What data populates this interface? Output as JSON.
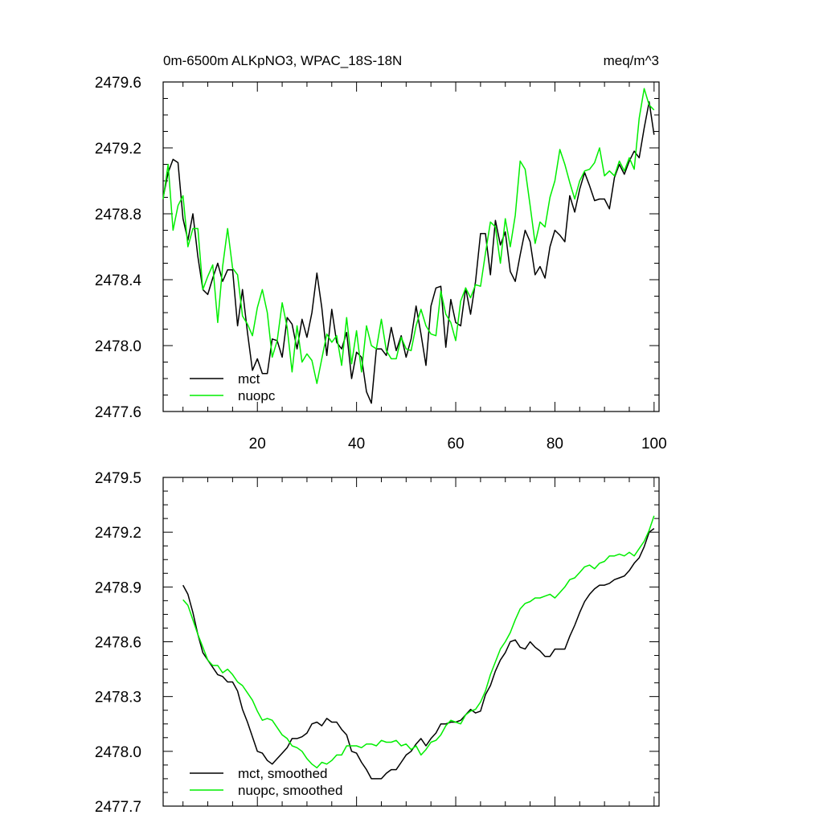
{
  "chart_data": [
    {
      "type": "line",
      "title": "0m-6500m ALKpNO3, WPAC_18S-18N",
      "units": "meq/m^3",
      "xlim": [
        1,
        101
      ],
      "ylim": [
        2477.6,
        2479.6
      ],
      "xticks": [
        20,
        40,
        60,
        80,
        100
      ],
      "yticks": [
        2477.6,
        2478.0,
        2478.4,
        2478.8,
        2479.2,
        2479.6
      ],
      "ytick_labels": [
        "2477.6",
        "2478.0",
        "2478.4",
        "2478.8",
        "2479.2",
        "2479.6"
      ],
      "legend": "bottom-left",
      "series": [
        {
          "name": "mct",
          "color": "#000000",
          "x_start": 1,
          "values": [
            2478.9,
            2479.05,
            2479.13,
            2479.11,
            2478.77,
            2478.64,
            2478.8,
            2478.54,
            2478.34,
            2478.31,
            2478.41,
            2478.5,
            2478.39,
            2478.46,
            2478.46,
            2478.12,
            2478.34,
            2478.08,
            2477.85,
            2477.92,
            2477.83,
            2477.83,
            2478.04,
            2478.03,
            2477.93,
            2478.17,
            2478.13,
            2477.98,
            2478.16,
            2478.05,
            2478.2,
            2478.44,
            2478.23,
            2477.94,
            2478.22,
            2478.02,
            2477.98,
            2478.08,
            2477.8,
            2477.96,
            2477.93,
            2477.72,
            2477.65,
            2477.98,
            2477.98,
            2477.94,
            2478.11,
            2477.97,
            2478.06,
            2477.93,
            2478.04,
            2478.24,
            2478.07,
            2477.88,
            2478.24,
            2478.35,
            2478.36,
            2477.99,
            2478.28,
            2478.14,
            2478.12,
            2478.35,
            2478.19,
            2478.39,
            2478.68,
            2478.68,
            2478.43,
            2478.76,
            2478.61,
            2478.69,
            2478.45,
            2478.39,
            2478.55,
            2478.7,
            2478.63,
            2478.43,
            2478.48,
            2478.41,
            2478.6,
            2478.7,
            2478.67,
            2478.63,
            2478.91,
            2478.81,
            2478.95,
            2479.05,
            2478.97,
            2478.88,
            2478.89,
            2478.89,
            2478.83,
            2479.02,
            2479.1,
            2479.04,
            2479.12,
            2479.18,
            2479.14,
            2479.32,
            2479.48,
            2479.28
          ]
        },
        {
          "name": "nuopc",
          "color": "#00ee00",
          "x_start": 1,
          "values": [
            2478.89,
            2479.1,
            2478.7,
            2478.85,
            2478.91,
            2478.6,
            2478.71,
            2478.71,
            2478.34,
            2478.42,
            2478.49,
            2478.14,
            2478.48,
            2478.71,
            2478.47,
            2478.43,
            2478.18,
            2478.13,
            2478.06,
            2478.23,
            2478.34,
            2478.2,
            2477.93,
            2478.03,
            2478.26,
            2478.11,
            2477.84,
            2478.12,
            2477.9,
            2477.95,
            2477.91,
            2477.77,
            2477.92,
            2478.07,
            2478.02,
            2478.06,
            2477.88,
            2478.17,
            2477.89,
            2478.09,
            2477.84,
            2478.12,
            2478.0,
            2477.98,
            2478.16,
            2477.97,
            2477.92,
            2477.92,
            2478.05,
            2477.98,
            2477.97,
            2478.12,
            2478.22,
            2478.12,
            2478.07,
            2478.06,
            2478.33,
            2478.19,
            2478.14,
            2478.03,
            2478.27,
            2478.35,
            2478.29,
            2478.37,
            2478.36,
            2478.56,
            2478.75,
            2478.72,
            2478.5,
            2478.77,
            2478.6,
            2478.79,
            2479.12,
            2479.07,
            2478.85,
            2478.62,
            2478.75,
            2478.72,
            2478.9,
            2479.0,
            2479.19,
            2479.1,
            2478.99,
            2478.89,
            2479.0,
            2479.06,
            2479.07,
            2479.11,
            2479.2,
            2479.03,
            2479.06,
            2479.03,
            2479.12,
            2479.06,
            2479.14,
            2479.07,
            2479.38,
            2479.56,
            2479.46,
            2479.43
          ]
        }
      ]
    },
    {
      "type": "line",
      "xlim": [
        1,
        101
      ],
      "ylim": [
        2477.7,
        2479.5
      ],
      "xticks": [
        20,
        40,
        60,
        80,
        100
      ],
      "yticks": [
        2477.7,
        2478.0,
        2478.3,
        2478.6,
        2478.9,
        2479.2,
        2479.5
      ],
      "ytick_labels": [
        "2477.7",
        "2478.0",
        "2478.3",
        "2478.6",
        "2478.9",
        "2479.2",
        "2479.5"
      ],
      "legend": "bottom-left",
      "series": [
        {
          "name": "mct, smoothed",
          "color": "#000000",
          "x_start": 5,
          "values": [
            2478.91,
            2478.86,
            2478.76,
            2478.64,
            2478.54,
            2478.5,
            2478.46,
            2478.42,
            2478.41,
            2478.38,
            2478.38,
            2478.33,
            2478.23,
            2478.16,
            2478.08,
            2478.0,
            2477.99,
            2477.95,
            2477.93,
            2477.96,
            2477.99,
            2478.02,
            2478.07,
            2478.07,
            2478.08,
            2478.1,
            2478.15,
            2478.16,
            2478.14,
            2478.18,
            2478.16,
            2478.16,
            2478.12,
            2478.09,
            2478.0,
            2477.99,
            2477.94,
            2477.9,
            2477.85,
            2477.85,
            2477.85,
            2477.88,
            2477.9,
            2477.9,
            2477.94,
            2477.98,
            2478.0,
            2478.04,
            2478.07,
            2478.03,
            2478.07,
            2478.1,
            2478.15,
            2478.15,
            2478.16,
            2478.16,
            2478.17,
            2478.2,
            2478.23,
            2478.21,
            2478.22,
            2478.31,
            2478.36,
            2478.44,
            2478.5,
            2478.54,
            2478.6,
            2478.61,
            2478.57,
            2478.56,
            2478.6,
            2478.57,
            2478.55,
            2478.52,
            2478.52,
            2478.56,
            2478.56,
            2478.56,
            2478.63,
            2478.69,
            2478.76,
            2478.82,
            2478.86,
            2478.89,
            2478.91,
            2478.91,
            2478.92,
            2478.94,
            2478.95,
            2478.96,
            2478.99,
            2479.03,
            2479.06,
            2479.12,
            2479.2,
            2479.22
          ]
        },
        {
          "name": "nuopc, smoothed",
          "color": "#00ee00",
          "x_start": 5,
          "values": [
            2478.83,
            2478.8,
            2478.72,
            2478.64,
            2478.57,
            2478.5,
            2478.47,
            2478.47,
            2478.43,
            2478.45,
            2478.42,
            2478.38,
            2478.36,
            2478.32,
            2478.28,
            2478.22,
            2478.17,
            2478.18,
            2478.17,
            2478.13,
            2478.09,
            2478.07,
            2478.03,
            2478.02,
            2478.0,
            2477.96,
            2477.93,
            2477.91,
            2477.94,
            2477.93,
            2477.95,
            2477.98,
            2477.98,
            2478.03,
            2478.03,
            2478.03,
            2478.02,
            2478.04,
            2478.04,
            2478.03,
            2478.06,
            2478.05,
            2478.05,
            2478.06,
            2478.03,
            2478.04,
            2478.01,
            2478.03,
            2477.98,
            2478.01,
            2478.05,
            2478.06,
            2478.09,
            2478.14,
            2478.17,
            2478.16,
            2478.15,
            2478.2,
            2478.22,
            2478.23,
            2478.27,
            2478.33,
            2478.42,
            2478.49,
            2478.56,
            2478.6,
            2478.65,
            2478.72,
            2478.78,
            2478.81,
            2478.82,
            2478.84,
            2478.84,
            2478.85,
            2478.86,
            2478.84,
            2478.87,
            2478.9,
            2478.94,
            2478.95,
            2478.98,
            2479.01,
            2479.02,
            2479.0,
            2479.03,
            2479.04,
            2479.07,
            2479.07,
            2479.08,
            2479.07,
            2479.09,
            2479.07,
            2479.11,
            2479.15,
            2479.21,
            2479.29
          ]
        }
      ]
    }
  ]
}
